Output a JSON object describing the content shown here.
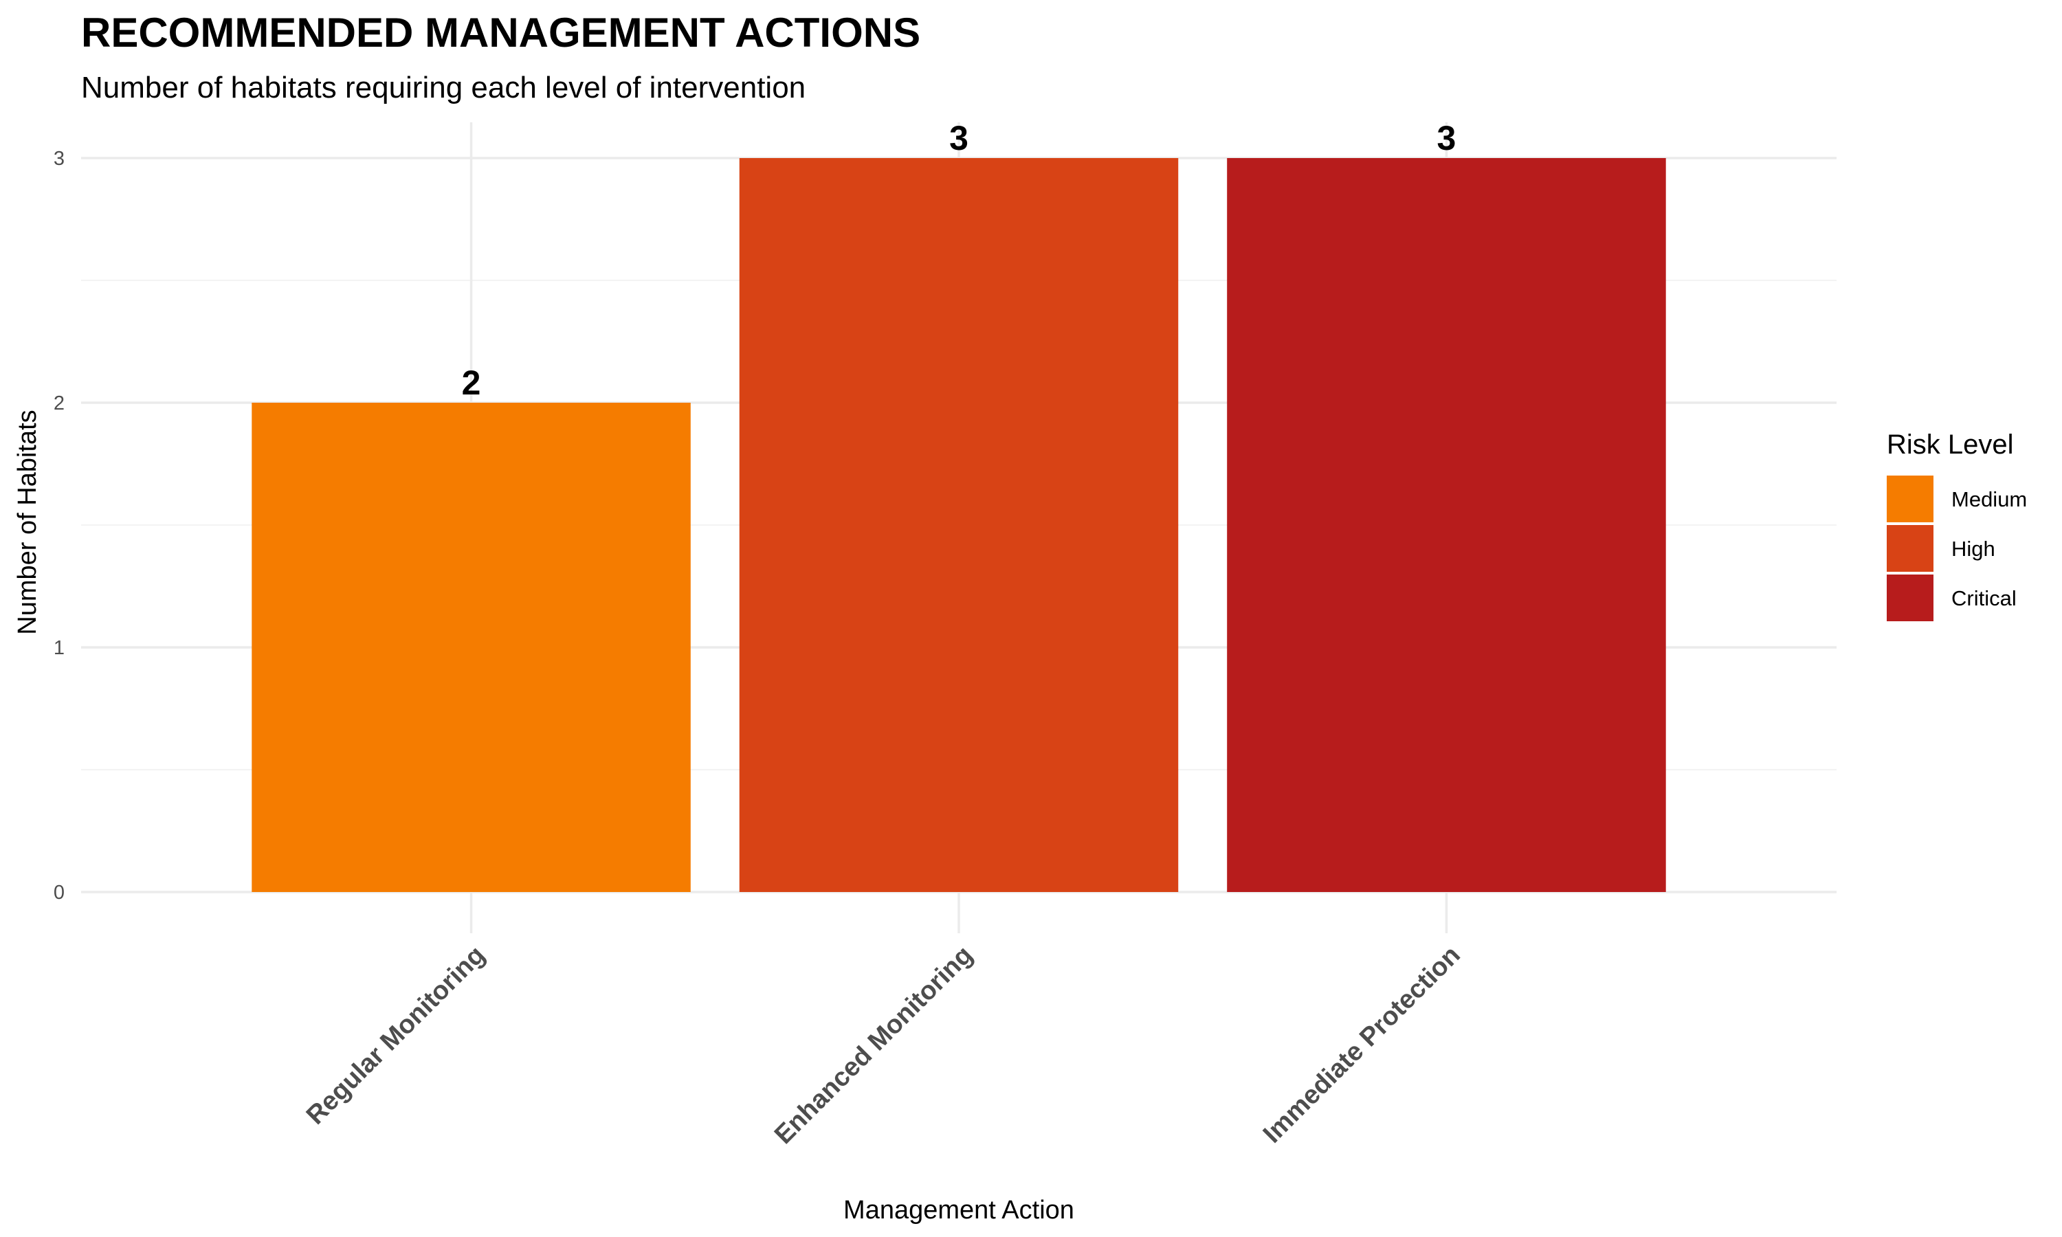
{
  "chart_data": {
    "type": "bar",
    "title": "RECOMMENDED MANAGEMENT ACTIONS",
    "subtitle": "Number of habitats requiring each level of intervention",
    "xlabel": "Management Action",
    "ylabel": "Number of Habitats",
    "categories": [
      "Regular Monitoring",
      "Enhanced Monitoring",
      "Immediate Protection"
    ],
    "values": [
      2,
      3,
      3
    ],
    "risk_levels": [
      "Medium",
      "High",
      "Critical"
    ],
    "ylim": [
      0,
      3
    ],
    "yticks": [
      0,
      1,
      2,
      3
    ],
    "grid": true,
    "legend": {
      "title": "Risk Level",
      "placement": "right",
      "entries": [
        {
          "label": "Medium",
          "color": "#f57c00"
        },
        {
          "label": "High",
          "color": "#d84315"
        },
        {
          "label": "Critical",
          "color": "#b71c1c"
        }
      ]
    }
  }
}
